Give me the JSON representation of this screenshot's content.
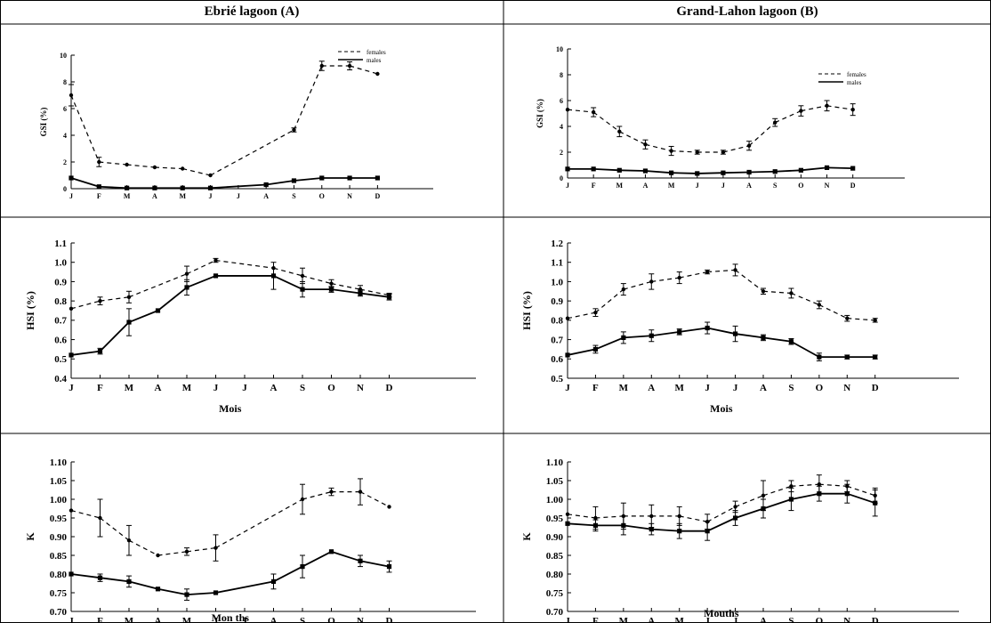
{
  "headers": {
    "left": "Ebrié lagoon (A)",
    "right": "Grand-Lahon lagoon (B)"
  },
  "chart_data": [
    {
      "type": "line",
      "panel": "GSI-A",
      "categories": [
        "J",
        "F",
        "M",
        "A",
        "M",
        "J",
        "J",
        "A",
        "S",
        "O",
        "N",
        "D"
      ],
      "ylabel": "GSI (%)",
      "xlabel": "",
      "ylim": [
        0,
        10
      ],
      "yticks": [
        "0",
        "2",
        "4",
        "6",
        "8",
        "10"
      ],
      "xmax": 13,
      "legend": {
        "position": "top-right",
        "entries": [
          "females",
          "males"
        ]
      },
      "series": [
        {
          "name": "females",
          "style": "dashed",
          "values": [
            7.0,
            2.0,
            1.8,
            1.6,
            1.5,
            1.0,
            null,
            null,
            4.4,
            9.2,
            9.2,
            8.6
          ],
          "err": [
            0.8,
            0.35,
            0,
            0,
            0,
            0,
            0,
            0,
            0.15,
            0.35,
            0.3,
            0
          ]
        },
        {
          "name": "males",
          "style": "solid",
          "values": [
            0.8,
            0.15,
            0.05,
            0.05,
            0.05,
            0.05,
            null,
            0.3,
            0.6,
            0.8,
            0.8,
            0.8
          ],
          "err": [
            0,
            0,
            0,
            0,
            0,
            0,
            0,
            0,
            0,
            0,
            0,
            0
          ]
        }
      ]
    },
    {
      "type": "line",
      "panel": "GSI-B",
      "categories": [
        "J",
        "F",
        "M",
        "A",
        "M",
        "J",
        "J",
        "A",
        "S",
        "O",
        "N",
        "D"
      ],
      "ylabel": "GSI (%)",
      "xlabel": "",
      "ylim": [
        0,
        10
      ],
      "yticks": [
        "0",
        "2",
        "4",
        "6",
        "8",
        "10"
      ],
      "xmax": 13,
      "legend": {
        "position": "top-right",
        "entries": [
          "females",
          "males"
        ]
      },
      "series": [
        {
          "name": "females",
          "style": "dashed",
          "values": [
            5.3,
            5.1,
            3.6,
            2.6,
            2.1,
            2.0,
            2.0,
            2.5,
            4.3,
            5.2,
            5.6,
            5.3
          ],
          "err": [
            0,
            0.35,
            0.4,
            0.35,
            0.35,
            0.15,
            0.15,
            0.35,
            0.3,
            0.4,
            0.4,
            0.45
          ]
        },
        {
          "name": "males",
          "style": "solid",
          "values": [
            0.7,
            0.7,
            0.6,
            0.55,
            0.4,
            0.35,
            0.4,
            0.45,
            0.5,
            0.6,
            0.8,
            0.75
          ],
          "err": [
            0,
            0,
            0,
            0,
            0,
            0,
            0,
            0,
            0,
            0,
            0,
            0
          ]
        }
      ]
    },
    {
      "type": "line",
      "panel": "HSI-A",
      "categories": [
        "J",
        "F",
        "M",
        "A",
        "M",
        "J",
        "J",
        "A",
        "S",
        "O",
        "N",
        "D"
      ],
      "ylabel": "HSI (%)",
      "xlabel": "Mois",
      "ylim": [
        0.4,
        1.1
      ],
      "yticks": [
        "0.4",
        "0.5",
        "0.6",
        "0.7",
        "0.8",
        "0.9",
        "1.0",
        "1.1"
      ],
      "xmax": 14,
      "series": [
        {
          "name": "females",
          "style": "dashed",
          "values": [
            0.76,
            0.8,
            0.82,
            null,
            0.94,
            1.01,
            null,
            0.97,
            0.93,
            0.89,
            0.86,
            0.83
          ],
          "err": [
            0,
            0.02,
            0.03,
            0,
            0.04,
            0.01,
            0,
            0,
            0.04,
            0.02,
            0.02,
            0.01
          ]
        },
        {
          "name": "males",
          "style": "solid",
          "values": [
            0.52,
            0.54,
            0.69,
            0.75,
            0.87,
            0.93,
            null,
            0.93,
            0.86,
            0.86,
            0.84,
            0.82
          ],
          "err": [
            0,
            0.015,
            0.07,
            0,
            0.04,
            0,
            0,
            0.07,
            0.04,
            0.015,
            0.015,
            0.015
          ]
        }
      ]
    },
    {
      "type": "line",
      "panel": "HSI-B",
      "categories": [
        "J",
        "F",
        "M",
        "A",
        "M",
        "J",
        "J",
        "A",
        "S",
        "O",
        "N",
        "D"
      ],
      "ylabel": "HSI (%)",
      "xlabel": "Mois",
      "ylim": [
        0.5,
        1.2
      ],
      "yticks": [
        "0.5",
        "0.6",
        "0.7",
        "0.8",
        "0.9",
        "1.0",
        "1.1",
        "1.2"
      ],
      "xmax": 14,
      "series": [
        {
          "name": "females",
          "style": "dashed",
          "values": [
            0.81,
            0.84,
            0.96,
            1.0,
            1.02,
            1.05,
            1.06,
            0.95,
            0.94,
            0.88,
            0.81,
            0.8
          ],
          "err": [
            0,
            0.02,
            0.03,
            0.04,
            0.03,
            0.01,
            0.03,
            0.015,
            0.025,
            0.02,
            0.015,
            0.01
          ]
        },
        {
          "name": "males",
          "style": "solid",
          "values": [
            0.62,
            0.65,
            0.71,
            0.72,
            0.74,
            0.76,
            0.73,
            0.71,
            0.69,
            0.61,
            0.61,
            0.61
          ],
          "err": [
            0,
            0.02,
            0.03,
            0.03,
            0.015,
            0.03,
            0.04,
            0.015,
            0.015,
            0.02,
            0.01,
            0.01
          ]
        }
      ]
    },
    {
      "type": "line",
      "panel": "K-A",
      "categories": [
        "J",
        "F",
        "M",
        "A",
        "M",
        "J",
        "J",
        "A",
        "S",
        "O",
        "N",
        "D"
      ],
      "ylabel": "K",
      "xlabel": "Mon ths",
      "ylim": [
        0.7,
        1.1
      ],
      "yticks": [
        "0.70",
        "0.75",
        "0.80",
        "0.85",
        "0.90",
        "0.95",
        "1.00",
        "1.05",
        "1.10"
      ],
      "xmax": 14,
      "series": [
        {
          "name": "females",
          "style": "dashed",
          "values": [
            0.97,
            0.95,
            0.89,
            0.85,
            0.86,
            0.87,
            null,
            null,
            1.0,
            1.02,
            1.02,
            0.98
          ],
          "err": [
            0,
            0.05,
            0.04,
            0,
            0.01,
            0.035,
            0,
            0,
            0.04,
            0.01,
            0.035,
            0
          ]
        },
        {
          "name": "males",
          "style": "solid",
          "values": [
            0.8,
            0.79,
            0.78,
            0.76,
            0.745,
            0.75,
            null,
            0.78,
            0.82,
            0.86,
            0.835,
            0.82
          ],
          "err": [
            0,
            0.01,
            0.015,
            0,
            0.015,
            0,
            0,
            0.02,
            0.03,
            0,
            0.015,
            0.015
          ]
        }
      ]
    },
    {
      "type": "line",
      "panel": "K-B",
      "categories": [
        "J",
        "F",
        "M",
        "A",
        "M",
        "J",
        "J",
        "A",
        "S",
        "O",
        "N",
        "D"
      ],
      "ylabel": "K",
      "xlabel": "Mouths",
      "ylim": [
        0.7,
        1.1
      ],
      "yticks": [
        "0.70",
        "0.75",
        "0.80",
        "0.85",
        "0.90",
        "0.95",
        "1.00",
        "1.05",
        "1.10"
      ],
      "xmax": 14,
      "series": [
        {
          "name": "females",
          "style": "dashed",
          "values": [
            0.96,
            0.95,
            0.955,
            0.955,
            0.955,
            0.94,
            0.98,
            1.01,
            1.035,
            1.04,
            1.035,
            1.01
          ],
          "err": [
            0,
            0.03,
            0.035,
            0.03,
            0.025,
            0.02,
            0.015,
            0.04,
            0.015,
            0.025,
            0.015,
            0.02
          ]
        },
        {
          "name": "males",
          "style": "solid",
          "values": [
            0.935,
            0.93,
            0.93,
            0.92,
            0.915,
            0.915,
            0.95,
            0.975,
            1.0,
            1.015,
            1.015,
            0.99
          ],
          "err": [
            0,
            0.015,
            0.025,
            0.015,
            0.02,
            0.025,
            0.02,
            0.025,
            0.03,
            0.02,
            0.025,
            0.035
          ]
        }
      ]
    }
  ]
}
